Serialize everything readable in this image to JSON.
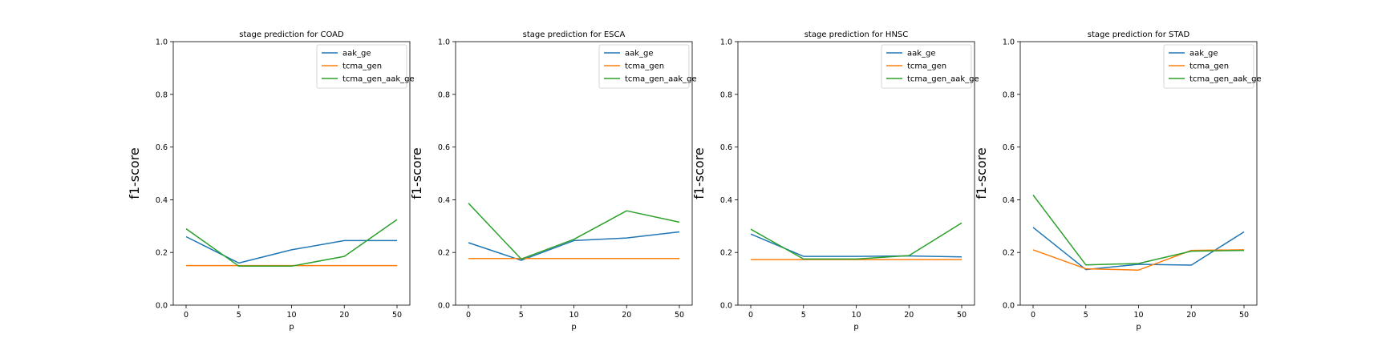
{
  "chart_data": [
    {
      "type": "line",
      "title": "stage prediction for COAD",
      "xlabel": "p",
      "ylabel": "f1-score",
      "categories": [
        "0",
        "5",
        "10",
        "20",
        "50"
      ],
      "ylim": [
        0,
        1
      ],
      "yticks": [
        "0.0",
        "0.2",
        "0.4",
        "0.6",
        "0.8",
        "1.0"
      ],
      "legend_position": "upper-right",
      "series": [
        {
          "name": "aak_ge",
          "color": "#1f77b4",
          "values": [
            0.26,
            0.16,
            0.21,
            0.245,
            0.245
          ]
        },
        {
          "name": "tcma_gen",
          "color": "#ff7f0e",
          "values": [
            0.15,
            0.15,
            0.15,
            0.15,
            0.15
          ]
        },
        {
          "name": "tcma_gen_aak_ge",
          "color": "#2ca02c",
          "values": [
            0.29,
            0.148,
            0.148,
            0.185,
            0.325
          ]
        }
      ]
    },
    {
      "type": "line",
      "title": "stage prediction for ESCA",
      "xlabel": "p",
      "ylabel": "f1-score",
      "categories": [
        "0",
        "5",
        "10",
        "20",
        "50"
      ],
      "ylim": [
        0,
        1
      ],
      "yticks": [
        "0.0",
        "0.2",
        "0.4",
        "0.6",
        "0.8",
        "1.0"
      ],
      "legend_position": "upper-right",
      "series": [
        {
          "name": "aak_ge",
          "color": "#1f77b4",
          "values": [
            0.237,
            0.17,
            0.245,
            0.255,
            0.278
          ]
        },
        {
          "name": "tcma_gen",
          "color": "#ff7f0e",
          "values": [
            0.177,
            0.177,
            0.177,
            0.177,
            0.177
          ]
        },
        {
          "name": "tcma_gen_aak_ge",
          "color": "#2ca02c",
          "values": [
            0.387,
            0.175,
            0.25,
            0.358,
            0.315
          ]
        }
      ]
    },
    {
      "type": "line",
      "title": "stage prediction for HNSC",
      "xlabel": "p",
      "ylabel": "f1-score",
      "categories": [
        "0",
        "5",
        "10",
        "20",
        "50"
      ],
      "ylim": [
        0,
        1
      ],
      "yticks": [
        "0.0",
        "0.2",
        "0.4",
        "0.6",
        "0.8",
        "1.0"
      ],
      "legend_position": "upper-right",
      "series": [
        {
          "name": "aak_ge",
          "color": "#1f77b4",
          "values": [
            0.27,
            0.185,
            0.185,
            0.187,
            0.183
          ]
        },
        {
          "name": "tcma_gen",
          "color": "#ff7f0e",
          "values": [
            0.173,
            0.173,
            0.173,
            0.173,
            0.173
          ]
        },
        {
          "name": "tcma_gen_aak_ge",
          "color": "#2ca02c",
          "values": [
            0.288,
            0.175,
            0.175,
            0.188,
            0.312
          ]
        }
      ]
    },
    {
      "type": "line",
      "title": "stage prediction for STAD",
      "xlabel": "p",
      "ylabel": "f1-score",
      "categories": [
        "0",
        "5",
        "10",
        "20",
        "50"
      ],
      "ylim": [
        0,
        1
      ],
      "yticks": [
        "0.0",
        "0.2",
        "0.4",
        "0.6",
        "0.8",
        "1.0"
      ],
      "legend_position": "upper-right",
      "series": [
        {
          "name": "aak_ge",
          "color": "#1f77b4",
          "values": [
            0.295,
            0.135,
            0.155,
            0.152,
            0.278
          ]
        },
        {
          "name": "tcma_gen",
          "color": "#ff7f0e",
          "values": [
            0.21,
            0.138,
            0.133,
            0.208,
            0.21
          ]
        },
        {
          "name": "tcma_gen_aak_ge",
          "color": "#2ca02c",
          "values": [
            0.418,
            0.153,
            0.158,
            0.205,
            0.208
          ]
        }
      ]
    }
  ]
}
